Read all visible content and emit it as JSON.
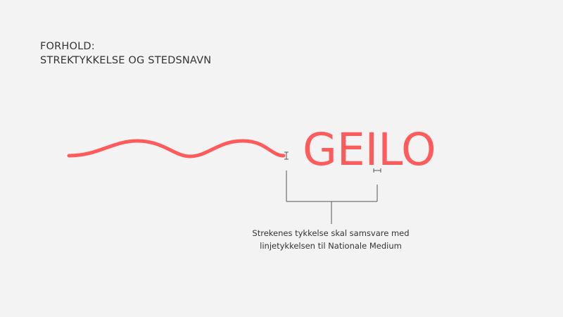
{
  "heading": {
    "line1": "FORHOLD:",
    "line2": "STREKTYKKELSE OG STEDSNAVN"
  },
  "place_name": "GEILO",
  "caption": {
    "line1": "Strekenes tykkelse skal samsvare med",
    "line2": "linjetykkelsen til Nationale Medium"
  },
  "colors": {
    "accent": "#fe5c5c",
    "text": "#333333",
    "marker": "#555555",
    "background": "#f3f3f3"
  }
}
